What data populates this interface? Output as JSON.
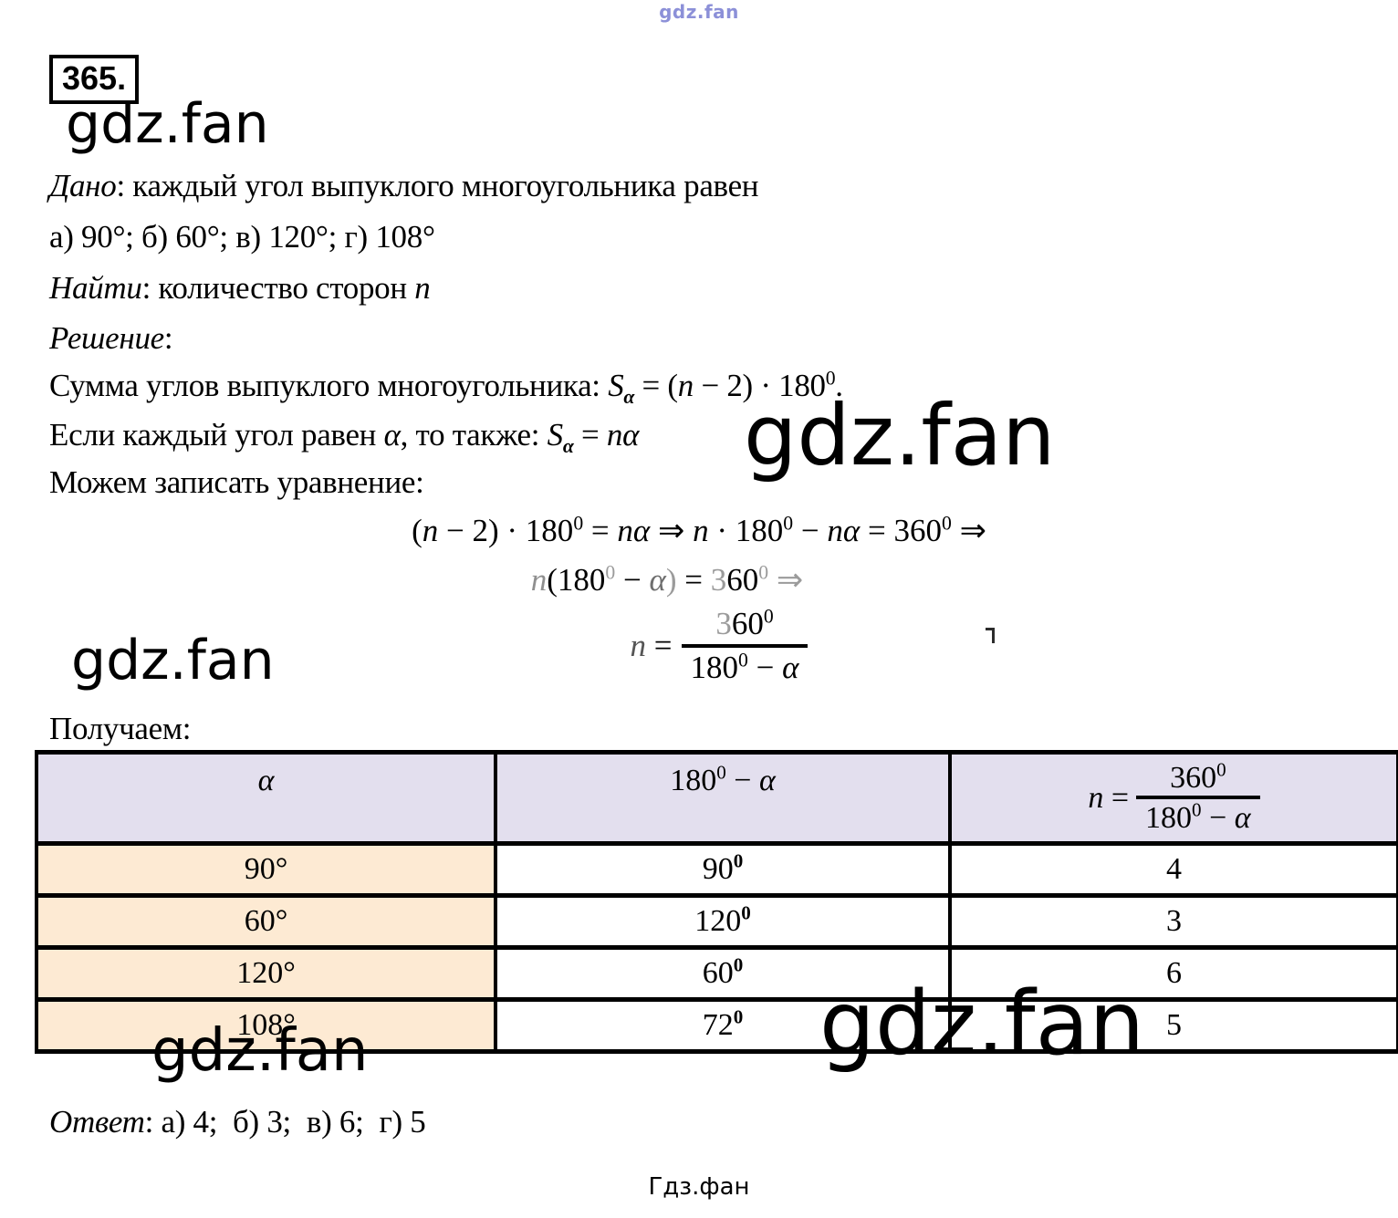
{
  "meta": {
    "problem_number": "365.",
    "watermark": "gdz.fan",
    "watermark_top": "gdz.fan",
    "watermark_top_color": "#8c90d8",
    "footer_sitename": "Гдз.фан",
    "colors": {
      "header_bg": "#e3dfee",
      "col1_bg": "#fdead3",
      "border": "#000000"
    }
  },
  "lines": {
    "dano": [
      {
        "t": "Дано",
        "s": "i"
      },
      {
        "t": ": каждый угол выпуклого многоугольника равен"
      }
    ],
    "cases": [
      {
        "t": "а) 90°; б) 60°; в) 120°; г) 108°"
      }
    ],
    "naiti": [
      {
        "t": "Найти",
        "s": "i"
      },
      {
        "t": ": количество сторон "
      },
      {
        "t": "n",
        "s": "i"
      }
    ],
    "reshenie": [
      {
        "t": "Решение",
        "s": "i"
      },
      {
        "t": ":"
      }
    ],
    "summa": [
      {
        "t": "Сумма углов выпуклого многоугольника: "
      },
      {
        "t": "S",
        "s": "i"
      },
      {
        "t": "α",
        "s": "subi"
      },
      {
        "t": " = ("
      },
      {
        "t": "n",
        "s": "i"
      },
      {
        "t": " − 2) · 180"
      },
      {
        "t": "0",
        "s": "sup"
      },
      {
        "t": "."
      }
    ],
    "esli": [
      {
        "t": "Если каждый угол равен "
      },
      {
        "t": "α",
        "s": "i"
      },
      {
        "t": ", то также: "
      },
      {
        "t": "S",
        "s": "i"
      },
      {
        "t": "α",
        "s": "subi"
      },
      {
        "t": " = "
      },
      {
        "t": "n",
        "s": "i"
      },
      {
        "t": "α",
        "s": "i"
      }
    ],
    "mozhem": [
      {
        "t": "Можем записать уравнение:"
      }
    ],
    "poluchaem": [
      {
        "t": "Получаем:"
      }
    ],
    "otvet": [
      {
        "t": "Ответ",
        "s": "i"
      },
      {
        "t": ": а) 4;  б) 3;  в) 6;  г) 5"
      }
    ]
  },
  "equations": {
    "eq1": [
      {
        "t": "("
      },
      {
        "t": "n",
        "s": "i"
      },
      {
        "t": " − 2) · 180"
      },
      {
        "t": "0",
        "s": "sup"
      },
      {
        "t": " = "
      },
      {
        "t": "n",
        "s": "i"
      },
      {
        "t": "α",
        "s": "i"
      },
      {
        "t": " ⇒ "
      },
      {
        "t": "n",
        "s": "i"
      },
      {
        "t": " · 180"
      },
      {
        "t": "0",
        "s": "sup"
      },
      {
        "t": " − "
      },
      {
        "t": "n",
        "s": "i"
      },
      {
        "t": "α",
        "s": "i"
      },
      {
        "t": " = 360"
      },
      {
        "t": "0",
        "s": "sup"
      },
      {
        "t": " ⇒"
      }
    ],
    "eq2": [
      {
        "t": "n",
        "s": "i",
        "c": "#8f8f8f"
      },
      {
        "t": "(180"
      },
      {
        "t": "0",
        "s": "sup",
        "c": "#9b9b9b"
      },
      {
        "t": " − "
      },
      {
        "t": "α",
        "s": "i",
        "c": "#6e6e6e"
      },
      {
        "t": ")",
        "c": "#9b9b9b"
      },
      {
        "t": " = "
      },
      {
        "t": "3",
        "c": "#9b9b9b"
      },
      {
        "t": "60"
      },
      {
        "t": "0",
        "s": "sup",
        "c": "#9b9b9b"
      },
      {
        "t": " "
      },
      {
        "t": "⇒",
        "c": "#9b9b9b"
      }
    ],
    "eq3_lhs": [
      {
        "t": "n",
        "s": "i",
        "c": "#555555"
      },
      {
        "t": " ="
      }
    ],
    "eq3_num": [
      {
        "t": "3",
        "c": "#9b9b9b"
      },
      {
        "t": "60"
      },
      {
        "t": "0",
        "s": "sup"
      }
    ],
    "eq3_den": [
      {
        "t": "180"
      },
      {
        "t": "0",
        "s": "sup"
      },
      {
        "t": " − "
      },
      {
        "t": "α",
        "s": "i"
      }
    ]
  },
  "table": {
    "header": {
      "col1": [
        {
          "t": "α",
          "s": "i"
        }
      ],
      "col2": [
        {
          "t": "180"
        },
        {
          "t": "0",
          "s": "sup"
        },
        {
          "t": " − "
        },
        {
          "t": "α",
          "s": "i"
        }
      ],
      "col3_lhs": [
        {
          "t": "n",
          "s": "i"
        },
        {
          "t": " ="
        }
      ],
      "col3_num": [
        {
          "t": "360"
        },
        {
          "t": "0",
          "s": "sup"
        }
      ],
      "col3_den": [
        {
          "t": "180"
        },
        {
          "t": "0",
          "s": "sup"
        },
        {
          "t": " − "
        },
        {
          "t": "α",
          "s": "i"
        }
      ]
    },
    "rows": [
      {
        "alpha": "90°",
        "diff": [
          {
            "t": "90"
          },
          {
            "t": "0",
            "s": "supb"
          }
        ],
        "n": "4"
      },
      {
        "alpha": "60°",
        "diff": [
          {
            "t": "120"
          },
          {
            "t": "0",
            "s": "supb"
          }
        ],
        "n": "3"
      },
      {
        "alpha": "120°",
        "diff": [
          {
            "t": "60"
          },
          {
            "t": "0",
            "s": "supb"
          }
        ],
        "n": "6"
      },
      {
        "alpha": "108°",
        "diff": [
          {
            "t": "72"
          },
          {
            "t": "0",
            "s": "supb"
          }
        ],
        "n": "5"
      }
    ]
  }
}
